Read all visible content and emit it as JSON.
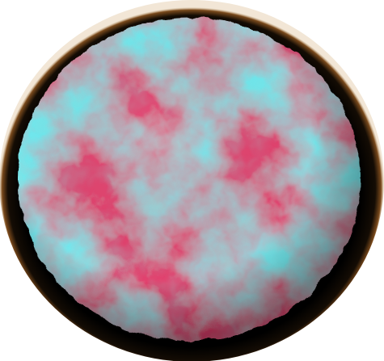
{
  "scene": {
    "subject": "noise-textured-sphere",
    "colors": {
      "background": "#ffffff",
      "disc_shadow": "#000000",
      "rim_glow": "#7a4a1c",
      "cyan": "#6fe9ef",
      "magenta": "#e2426e",
      "mid_teal": "#4fb5b0"
    }
  }
}
